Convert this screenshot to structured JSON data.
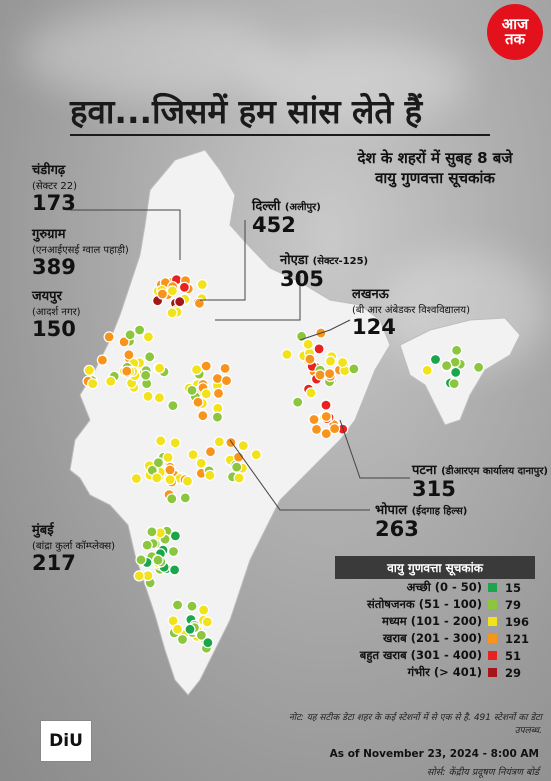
{
  "brand": {
    "logo_line1": "आज",
    "logo_line2": "तक",
    "diu": "DiU"
  },
  "title": "हवा...जिसमें हम सांस लेते हैं",
  "subtitle": "देश के शहरों में सुबह 8 बजे वायु गुणवत्ता सूचकांक",
  "cities": [
    {
      "key": "chandigarh",
      "name": "चंडीगढ़",
      "station": "(सेक्टर 22)",
      "value": "173"
    },
    {
      "key": "gurugram",
      "name": "गुरुग्राम",
      "station": "(एनआईएसई ग्वाल पहाड़ी)",
      "value": "389"
    },
    {
      "key": "jaipur",
      "name": "जयपुर",
      "station": "(आदर्श नगर)",
      "value": "150"
    },
    {
      "key": "delhi",
      "name": "दिल्ली",
      "station": "(अलीपुर)",
      "value": "452"
    },
    {
      "key": "noida",
      "name": "नोएडा",
      "station": "(सेक्टर-125)",
      "value": "305"
    },
    {
      "key": "lucknow",
      "name": "लखनऊ",
      "station": "(बी आर अंबेडकर विश्वविद्यालय)",
      "value": "124"
    },
    {
      "key": "patna",
      "name": "पटना",
      "station": "(डीआरएम कार्यालय दानापुर)",
      "value": "315"
    },
    {
      "key": "bhopal",
      "name": "भोपाल",
      "station": "(ईदगाह हिल्स)",
      "value": "263"
    },
    {
      "key": "mumbai",
      "name": "मुंबई",
      "station": "(बांद्रा कुर्ला कॉम्प्लेक्स)",
      "value": "217"
    }
  ],
  "legend": {
    "title": "वायु गुणवत्ता सूचकांक",
    "rows": [
      {
        "label": "अच्छी (0 - 50)",
        "color": "#1aa64a",
        "count": "15"
      },
      {
        "label": "संतोषजनक (51 - 100)",
        "color": "#8cc63f",
        "count": "79"
      },
      {
        "label": "मध्यम (101 - 200)",
        "color": "#f2e21b",
        "count": "196"
      },
      {
        "label": "खराब (201 - 300)",
        "color": "#f7941d",
        "count": "121"
      },
      {
        "label": "बहुत खराब (301 - 400)",
        "color": "#e8231f",
        "count": "51"
      },
      {
        "label": "गंभीर (> 401)",
        "color": "#a3171b",
        "count": "29"
      }
    ]
  },
  "note": "नोट: यह सटीक डेटा शहर के कई स्टेशनों में से एक से है. 491 स्टेशनों का डेटा उपलब्ध.",
  "as_of": "As of November 23, 2024 - 8:00 AM",
  "source": "सोर्स: केंद्रीय प्रदूषण नियंत्रण बोर्ड"
}
